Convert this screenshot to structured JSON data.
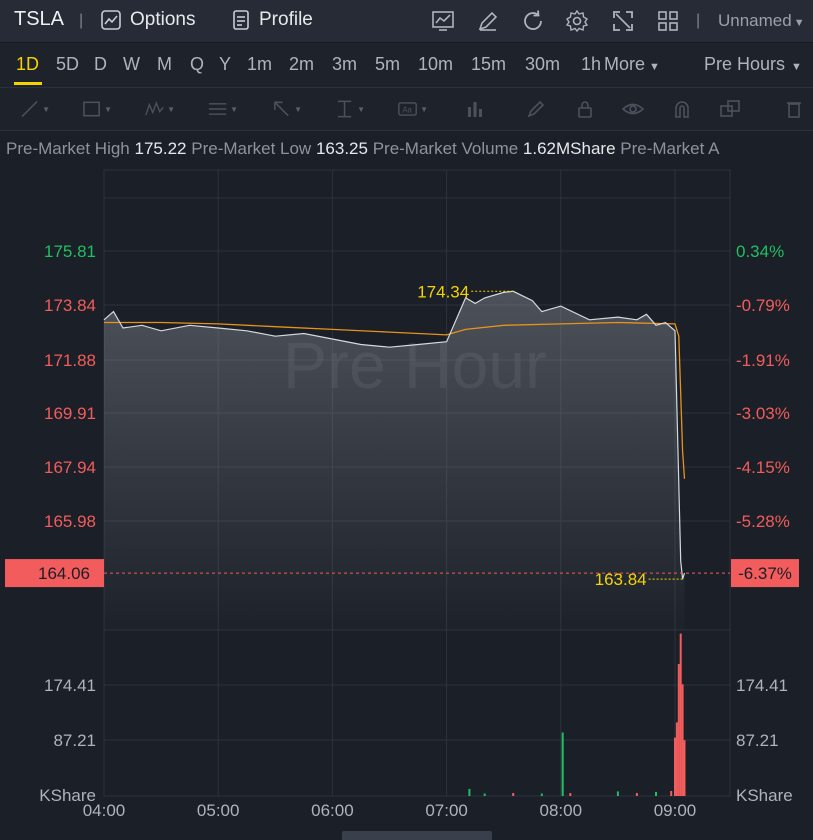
{
  "header": {
    "symbol": "TSLA",
    "separator": "|",
    "options_label": "Options",
    "profile_label": "Profile",
    "layout_name": "Unnamed"
  },
  "icons": [
    "chart-icon",
    "pencil-icon",
    "refresh-icon",
    "gear-icon",
    "fullscreen-icon",
    "grid-layout-icon"
  ],
  "timeframes": [
    "1D",
    "5D",
    "D",
    "W",
    "M",
    "Q",
    "Y",
    "1m",
    "2m",
    "3m",
    "5m",
    "10m",
    "15m",
    "30m",
    "1h"
  ],
  "active_timeframe": "1D",
  "more_label": "More",
  "session_label": "Pre Hours",
  "drawing_tools": [
    "line-tool-icon",
    "rectangle-tool-icon",
    "pattern-tool-icon",
    "fibonacci-tool-icon",
    "arrow-tool-icon",
    "measure-tool-icon",
    "text-tool-icon",
    "indicator-tool-icon",
    "brush-tool-icon",
    "lock-icon",
    "eye-icon",
    "magnet-icon",
    "copy-icon",
    "trash-icon"
  ],
  "info": {
    "high_label": "Pre-Market High",
    "high_value": "175.22",
    "low_label": "Pre-Market Low",
    "low_value": "163.25",
    "volume_label": "Pre-Market Volume",
    "volume_value": "1.62MShare",
    "trail_label": "Pre-Market A"
  },
  "watermark": "Pre Hour",
  "colors": {
    "up": "#1fbf62",
    "down": "#f25c5c",
    "price_line": "#d6d9de",
    "avg_line": "#e8921a",
    "annotation": "#f5d300",
    "background": "#1b1f27"
  },
  "chart_data": {
    "type": "line",
    "title": "",
    "x_ticks": [
      "04:00",
      "05:00",
      "06:00",
      "07:00",
      "08:00",
      "09:00"
    ],
    "y_ticks_left": [
      "175.81",
      "173.84",
      "171.88",
      "169.91",
      "167.94",
      "165.98"
    ],
    "y_ticks_right": [
      "0.34%",
      "-0.79%",
      "-1.91%",
      "-3.03%",
      "-4.15%",
      "-5.28%"
    ],
    "ylim": [
      164.06,
      176.5
    ],
    "current_price": "164.06",
    "current_pct": "-6.37%",
    "max_annotation": {
      "label": "174.34",
      "time": "07:35",
      "value": 174.34
    },
    "min_annotation": {
      "label": "163.84",
      "time": "09:04",
      "value": 163.84
    },
    "series": [
      {
        "x": [
          "04:00",
          "04:05",
          "04:10",
          "04:20",
          "04:30",
          "04:45",
          "05:00",
          "05:15",
          "05:30",
          "05:45",
          "06:00",
          "06:15",
          "06:30",
          "06:45",
          "07:00",
          "07:10",
          "07:15",
          "07:20",
          "07:30",
          "07:35",
          "07:45",
          "07:50",
          "08:00",
          "08:15",
          "08:30",
          "08:40",
          "08:45",
          "08:50",
          "08:55",
          "09:00",
          "09:03",
          "09:04",
          "09:05"
        ],
        "values": [
          173.3,
          173.6,
          173.0,
          173.1,
          172.9,
          173.1,
          173.0,
          172.9,
          172.7,
          172.8,
          172.6,
          172.4,
          172.3,
          172.4,
          172.5,
          174.1,
          173.9,
          174.1,
          174.3,
          174.34,
          174.0,
          173.6,
          173.8,
          173.3,
          173.4,
          173.3,
          173.5,
          173.1,
          173.2,
          172.9,
          164.5,
          163.84,
          164.06
        ]
      },
      {
        "x": [
          "04:00",
          "04:30",
          "05:00",
          "05:30",
          "06:00",
          "06:30",
          "07:00",
          "07:10",
          "07:30",
          "08:00",
          "08:30",
          "09:00",
          "09:02",
          "09:04",
          "09:05"
        ],
        "values": [
          173.2,
          173.2,
          173.15,
          173.05,
          172.95,
          172.85,
          172.75,
          172.95,
          173.1,
          173.15,
          173.2,
          173.15,
          172.7,
          168.5,
          167.5
        ]
      }
    ],
    "volume": {
      "ylabel": "KShare",
      "y_ticks": [
        "174.41",
        "87.21"
      ],
      "ylim": [
        0,
        327
      ],
      "bars": [
        {
          "time": "07:12",
          "value": 14,
          "dir": "up"
        },
        {
          "time": "07:20",
          "value": 5,
          "dir": "up"
        },
        {
          "time": "07:35",
          "value": 6,
          "dir": "down"
        },
        {
          "time": "07:50",
          "value": 5,
          "dir": "up"
        },
        {
          "time": "08:01",
          "value": 125,
          "dir": "up"
        },
        {
          "time": "08:05",
          "value": 6,
          "dir": "down"
        },
        {
          "time": "08:30",
          "value": 9,
          "dir": "up"
        },
        {
          "time": "08:40",
          "value": 6,
          "dir": "down"
        },
        {
          "time": "08:50",
          "value": 8,
          "dir": "up"
        },
        {
          "time": "08:58",
          "value": 10,
          "dir": "down"
        },
        {
          "time": "09:00",
          "value": 115,
          "dir": "down"
        },
        {
          "time": "09:01",
          "value": 145,
          "dir": "down"
        },
        {
          "time": "09:02",
          "value": 260,
          "dir": "down"
        },
        {
          "time": "09:03",
          "value": 320,
          "dir": "down"
        },
        {
          "time": "09:04",
          "value": 220,
          "dir": "down"
        },
        {
          "time": "09:05",
          "value": 110,
          "dir": "down"
        }
      ]
    }
  }
}
